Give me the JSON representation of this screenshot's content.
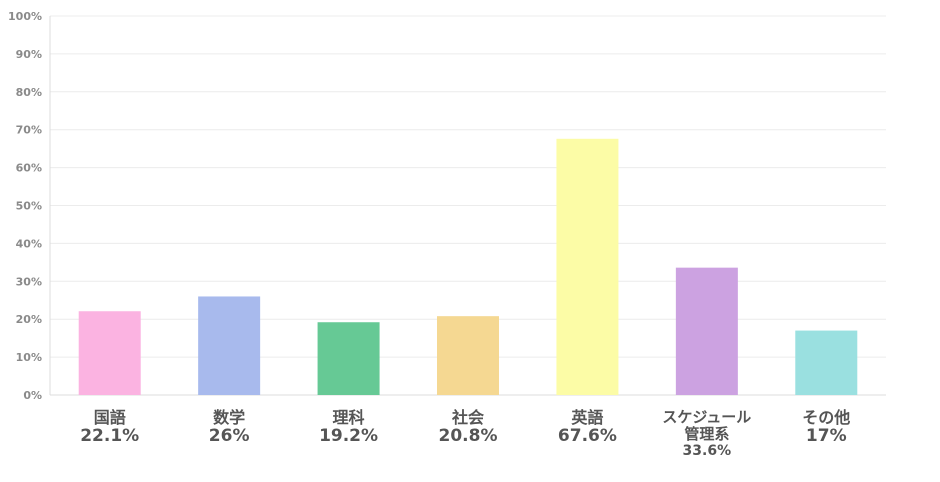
{
  "chart_data": {
    "type": "bar",
    "categories": [
      {
        "name": "国語",
        "value": 22.1,
        "label": "22.1%",
        "color": "#fbb3e1"
      },
      {
        "name": "数学",
        "value": 26,
        "label": "26%",
        "color": "#a8baed"
      },
      {
        "name": "理科",
        "value": 19.2,
        "label": "19.2%",
        "color": "#66c995"
      },
      {
        "name": "社会",
        "value": 20.8,
        "label": "20.8%",
        "color": "#f5d892"
      },
      {
        "name": "英語",
        "value": 67.6,
        "label": "67.6%",
        "color": "#fcfca6"
      },
      {
        "name": "スケジュール\n管理系",
        "value": 33.6,
        "label": "33.6%",
        "color": "#cca2e1"
      },
      {
        "name": "その他",
        "value": 17,
        "label": "17%",
        "color": "#9ae0e0"
      }
    ],
    "y_ticks": [
      "0%",
      "10%",
      "20%",
      "30%",
      "40%",
      "50%",
      "60%",
      "70%",
      "80%",
      "90%",
      "100%"
    ],
    "ylim": [
      0,
      100
    ],
    "grid": true,
    "legend": "none"
  }
}
